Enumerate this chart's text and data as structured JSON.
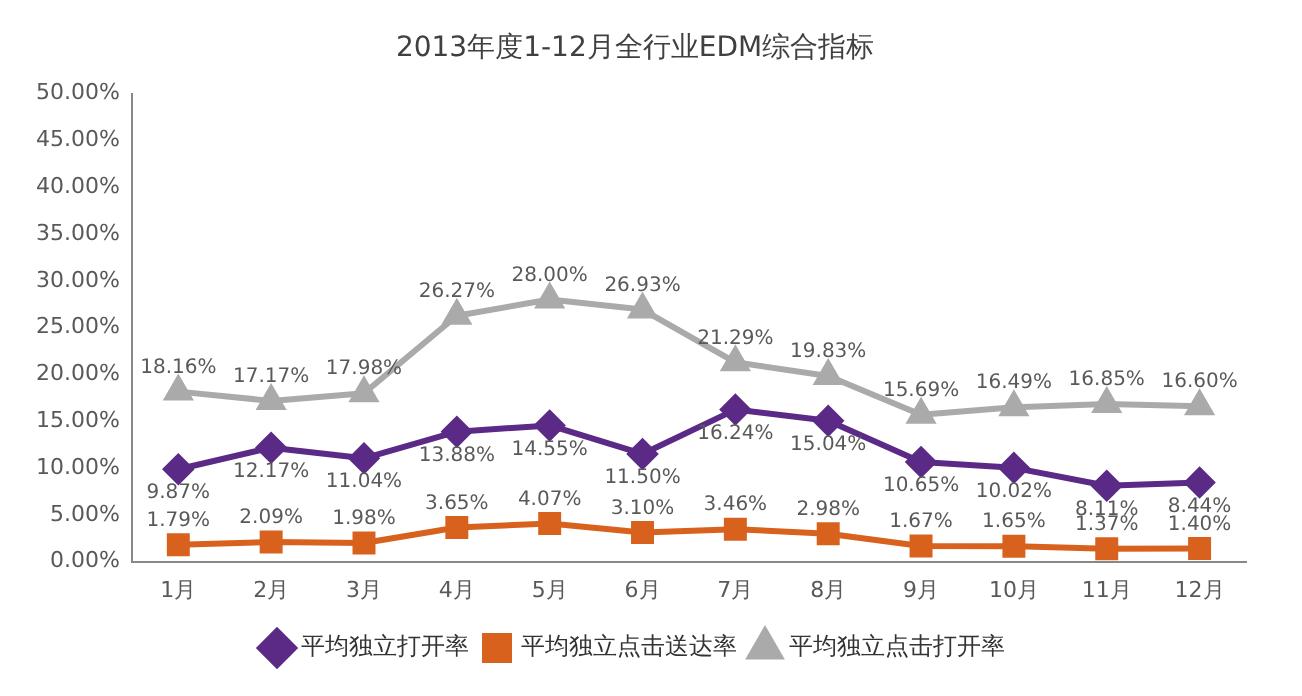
{
  "chart_data": {
    "type": "line",
    "title": "2013年度1-12月全行业EDM综合指标",
    "categories": [
      "1月",
      "2月",
      "3月",
      "4月",
      "5月",
      "6月",
      "7月",
      "8月",
      "9月",
      "10月",
      "11月",
      "12月"
    ],
    "series": [
      {
        "name": "平均独立打开率",
        "color": "#5b2a86",
        "marker": "diamond",
        "values": [
          9.87,
          12.17,
          11.04,
          13.88,
          14.55,
          11.5,
          16.24,
          15.04,
          10.65,
          10.02,
          8.11,
          8.44
        ],
        "value_labels": [
          "9.87%",
          "12.17%",
          "11.04%",
          "13.88%",
          "14.55%",
          "11.50%",
          "16.24%",
          "15.04%",
          "10.65%",
          "10.02%",
          "8.11%",
          "8.44%"
        ]
      },
      {
        "name": "平均独立点击送达率",
        "color": "#d8621d",
        "marker": "square",
        "values": [
          1.79,
          2.09,
          1.98,
          3.65,
          4.07,
          3.1,
          3.46,
          2.98,
          1.67,
          1.65,
          1.37,
          1.4
        ],
        "value_labels": [
          "1.79%",
          "2.09%",
          "1.98%",
          "3.65%",
          "4.07%",
          "3.10%",
          "3.46%",
          "2.98%",
          "1.67%",
          "1.65%",
          "1.37%",
          "1.40%"
        ]
      },
      {
        "name": "平均独立点击打开率",
        "color": "#aaaaaa",
        "marker": "triangle",
        "values": [
          18.16,
          17.17,
          17.98,
          26.27,
          28.0,
          26.93,
          21.29,
          19.83,
          15.69,
          16.49,
          16.85,
          16.6
        ],
        "value_labels": [
          "18.16%",
          "17.17%",
          "17.98%",
          "26.27%",
          "28.00%",
          "26.93%",
          "21.29%",
          "19.83%",
          "15.69%",
          "16.49%",
          "16.85%",
          "16.60%"
        ]
      }
    ],
    "ylim": [
      0,
      50
    ],
    "yticks": [
      {
        "value": 0,
        "label": "0.00%"
      },
      {
        "value": 5,
        "label": "5.00%"
      },
      {
        "value": 10,
        "label": "10.00%"
      },
      {
        "value": 15,
        "label": "15.00%"
      },
      {
        "value": 20,
        "label": "20.00%"
      },
      {
        "value": 25,
        "label": "25.00%"
      },
      {
        "value": 30,
        "label": "30.00%"
      },
      {
        "value": 35,
        "label": "35.00%"
      },
      {
        "value": 40,
        "label": "40.00%"
      },
      {
        "value": 45,
        "label": "45.00%"
      },
      {
        "value": 50,
        "label": "50.00%"
      }
    ],
    "grid": false,
    "legend": "bottom"
  }
}
